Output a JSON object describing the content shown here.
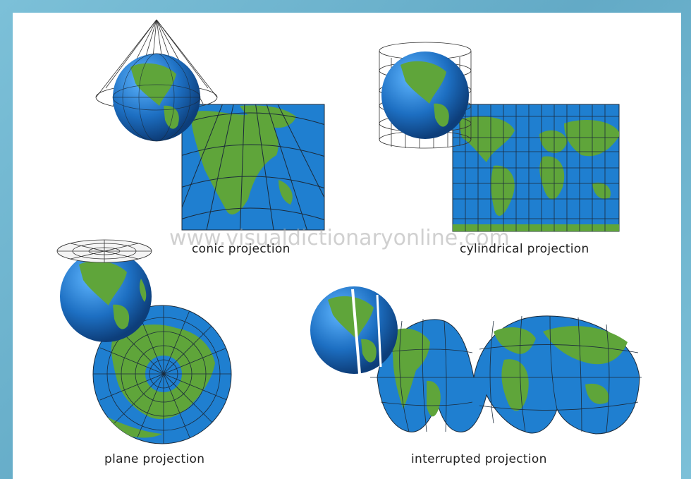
{
  "captions": {
    "conic": "conic projection",
    "cylindrical": "cylindrical projection",
    "plane": "plane projection",
    "interrupted": "interrupted projection"
  },
  "watermark": "www.visualdictionaryonline.com",
  "colors": {
    "ocean": "#1f7fd0",
    "land": "#5fa53a",
    "grid": "#1b2a3a",
    "background": "#6fb6cf"
  }
}
